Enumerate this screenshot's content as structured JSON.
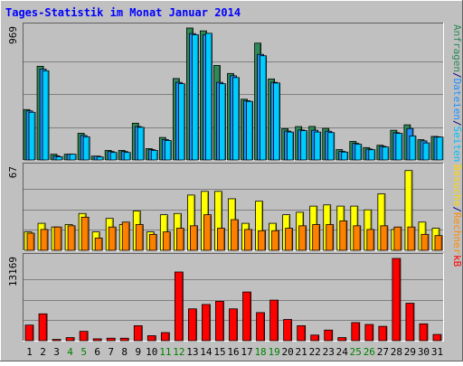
{
  "chart_data": {
    "type": "bar",
    "title": "Tages-Statistik im Monat Januar 2014",
    "days": [
      "1",
      "2",
      "3",
      "4",
      "5",
      "6",
      "7",
      "8",
      "9",
      "10",
      "11",
      "12",
      "13",
      "14",
      "15",
      "16",
      "17",
      "18",
      "19",
      "20",
      "21",
      "22",
      "23",
      "24",
      "25",
      "26",
      "27",
      "28",
      "29",
      "30",
      "31"
    ],
    "weekend_days": [
      "4",
      "5",
      "11",
      "12",
      "18",
      "19",
      "25",
      "26"
    ],
    "panels": [
      {
        "name": "traffic-panel",
        "scale_label": "969",
        "ymax": 969,
        "right_labels": [
          {
            "text": "Anfragen",
            "color": "#2e8b57"
          },
          {
            "text": "/",
            "color": "#000080"
          },
          {
            "text": "Dateien",
            "color": "#1e90ff"
          },
          {
            "text": "/",
            "color": "#000080"
          },
          {
            "text": "Seiten",
            "color": "#00bfff"
          }
        ],
        "series": [
          {
            "name": "Anfragen",
            "color": "#2e8b57",
            "values": [
              370,
              688,
              42,
              42,
              196,
              28,
              70,
              70,
              270,
              83,
              165,
              598,
              969,
              948,
              694,
              635,
              446,
              858,
              595,
              230,
              245,
              246,
              232,
              76,
              136,
              91,
              108,
              218,
              258,
              149,
              173
            ]
          },
          {
            "name": "Dateien",
            "color": "#1e90ff",
            "values": [
              360,
              667,
              30,
              42,
              180,
              28,
              62,
              62,
              245,
              76,
              150,
              570,
              928,
              920,
              570,
              618,
              435,
              775,
              570,
              212,
              220,
              218,
              211,
              63,
              122,
              80,
              100,
              200,
              231,
              140,
              170
            ]
          },
          {
            "name": "Seiten",
            "color": "#00ccff",
            "values": [
              350,
              655,
              24,
              42,
              170,
              22,
              55,
              55,
              240,
              70,
              143,
              560,
              920,
              930,
              560,
              605,
              430,
              765,
              565,
              205,
              215,
              205,
              201,
              58,
              115,
              75,
              95,
              195,
              176,
              125,
              168
            ]
          }
        ]
      },
      {
        "name": "visits-panel",
        "scale_label": "67",
        "ymax": 67,
        "right_labels": [
          {
            "text": "Besuche",
            "color": "#ffd700"
          },
          {
            "text": "/",
            "color": "#000080"
          },
          {
            "text": "Rechner",
            "color": "#ff8c00"
          }
        ],
        "series": [
          {
            "name": "Besuche",
            "color": "#ffff00",
            "values": [
              15,
              22,
              19,
              21,
              30,
              15,
              26,
              21,
              32,
              15,
              29,
              30,
              45,
              48,
              48,
              42,
              22,
              40,
              22,
              29,
              31,
              36,
              37,
              36,
              36,
              33,
              46,
              17,
              65,
              23,
              18
            ]
          },
          {
            "name": "Rechner",
            "color": "#ff8000",
            "values": [
              14,
              17,
              19,
              20,
              27,
              10,
              19,
              23,
              21,
              13,
              15,
              18,
              20,
              29,
              18,
              25,
              17,
              16,
              16,
              18,
              20,
              21,
              21,
              24,
              20,
              17,
              20,
              19,
              19,
              13,
              12
            ]
          }
        ]
      },
      {
        "name": "kb-panel",
        "scale_label": "13169",
        "ymax": 13169,
        "right_labels": [
          {
            "text": "kB",
            "color": "#ff0000"
          }
        ],
        "series": [
          {
            "name": "kB",
            "color": "#ff0000",
            "values": [
              2500,
              4300,
              200,
              500,
              1500,
              300,
              400,
              400,
              2400,
              800,
              1300,
              11000,
              5100,
              5800,
              6300,
              5100,
              7800,
              4500,
              6500,
              3400,
              2400,
              900,
              1700,
              500,
              2900,
              2600,
              2300,
              13169,
              6000,
              2700,
              1000
            ]
          }
        ]
      }
    ]
  }
}
